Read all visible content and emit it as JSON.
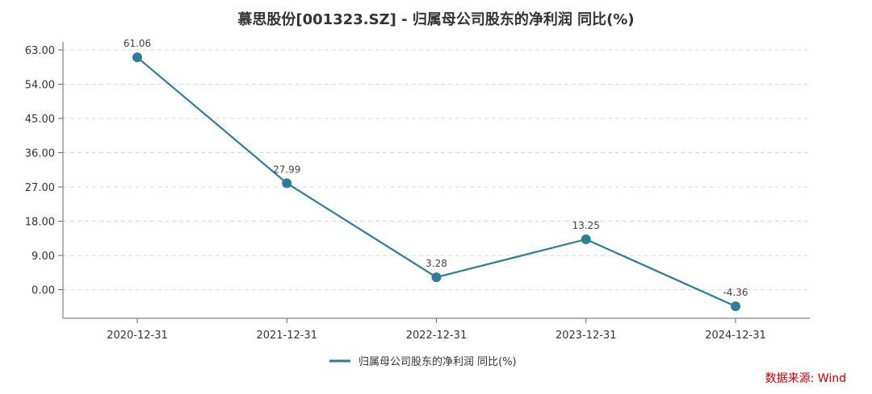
{
  "chart_data": {
    "type": "line",
    "title": "慕思股份[001323.SZ] - 归属母公司股东的净利润 同比(%)",
    "categories": [
      "2020-12-31",
      "2021-12-31",
      "2022-12-31",
      "2023-12-31",
      "2024-12-31"
    ],
    "series": [
      {
        "name": "归属母公司股东的净利润 同比(%)",
        "values": [
          61.06,
          27.99,
          3.28,
          13.25,
          -4.36
        ],
        "labels": [
          "61.06",
          "27.99",
          "3.28",
          "13.25",
          "-4.36"
        ]
      }
    ],
    "yticks": [
      "0.00",
      "9.00",
      "18.00",
      "27.00",
      "36.00",
      "45.00",
      "54.00",
      "63.00"
    ],
    "ytick_values": [
      0,
      9,
      18,
      27,
      36,
      45,
      54,
      63
    ],
    "ylim": [
      -7.5,
      63
    ],
    "grid": true,
    "legend_position": "bottom",
    "color": "#2e7d9a"
  },
  "source": "数据来源: Wind"
}
